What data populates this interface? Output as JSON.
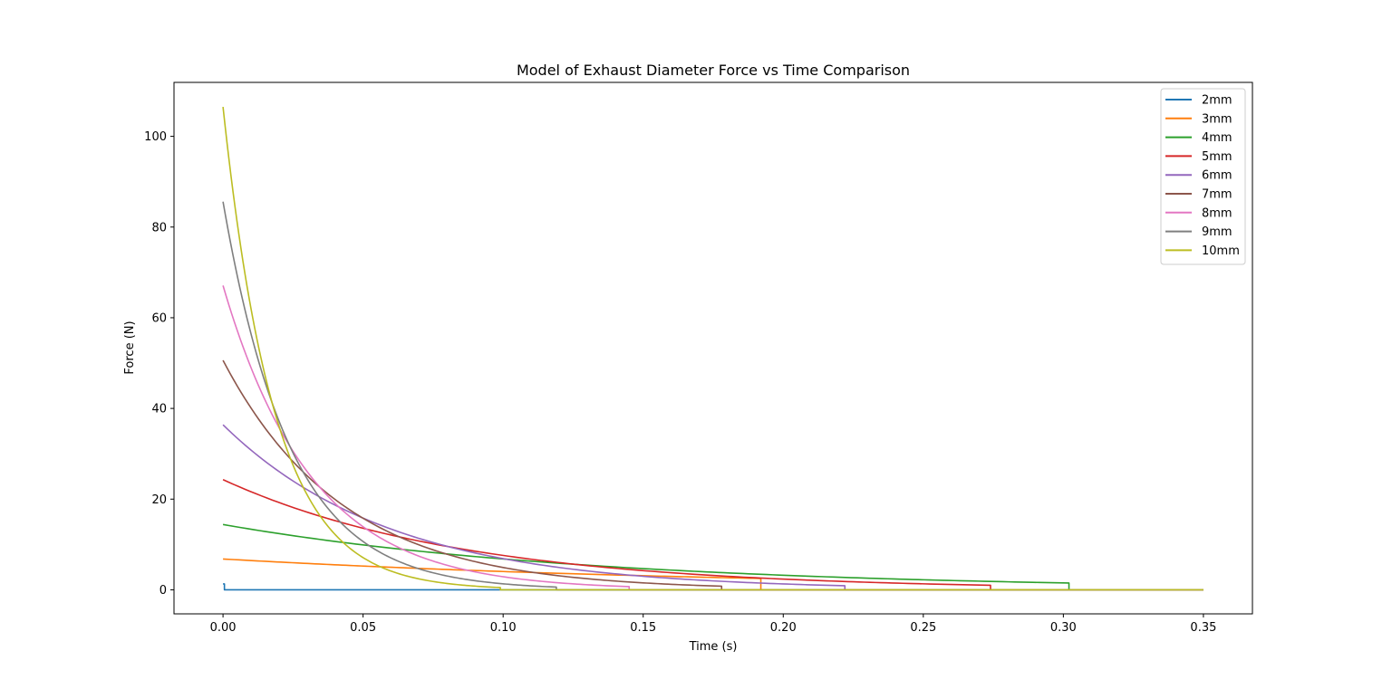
{
  "chart_data": {
    "type": "line",
    "title": "Model of Exhaust Diameter Force vs Time Comparison",
    "xlabel": "Time (s)",
    "ylabel": "Force (N)",
    "xlim": [
      -0.0175,
      0.3675
    ],
    "ylim": [
      -5.3,
      111.9
    ],
    "xticks": [
      0.0,
      0.05,
      0.1,
      0.15,
      0.2,
      0.25,
      0.3,
      0.35
    ],
    "xtick_labels": [
      "0.00",
      "0.05",
      "0.10",
      "0.15",
      "0.20",
      "0.25",
      "0.30",
      "0.35"
    ],
    "yticks": [
      0,
      20,
      40,
      60,
      80,
      100
    ],
    "ytick_labels": [
      "0",
      "20",
      "40",
      "60",
      "80",
      "100"
    ],
    "grid": false,
    "legend_position": "top-right",
    "x_end": 0.35,
    "series": [
      {
        "name": "2mm",
        "color": "#1f77b4",
        "f0": 1.3,
        "f_end": 0.0,
        "t_end": 0.0005
      },
      {
        "name": "3mm",
        "color": "#ff7f0e",
        "f0": 6.8,
        "f_end": 2.5,
        "t_end": 0.192
      },
      {
        "name": "4mm",
        "color": "#2ca02c",
        "f0": 14.4,
        "f_end": 1.5,
        "t_end": 0.302
      },
      {
        "name": "5mm",
        "color": "#d62728",
        "f0": 24.3,
        "f_end": 1.0,
        "t_end": 0.274
      },
      {
        "name": "6mm",
        "color": "#9467bd",
        "f0": 36.4,
        "f_end": 0.9,
        "t_end": 0.222
      },
      {
        "name": "7mm",
        "color": "#8c564b",
        "f0": 50.6,
        "f_end": 0.8,
        "t_end": 0.178
      },
      {
        "name": "8mm",
        "color": "#e377c2",
        "f0": 67.1,
        "f_end": 0.7,
        "t_end": 0.145
      },
      {
        "name": "9mm",
        "color": "#7f7f7f",
        "f0": 85.6,
        "f_end": 0.6,
        "t_end": 0.119
      },
      {
        "name": "10mm",
        "color": "#bcbd22",
        "f0": 106.5,
        "f_end": 0.5,
        "t_end": 0.099
      }
    ]
  }
}
